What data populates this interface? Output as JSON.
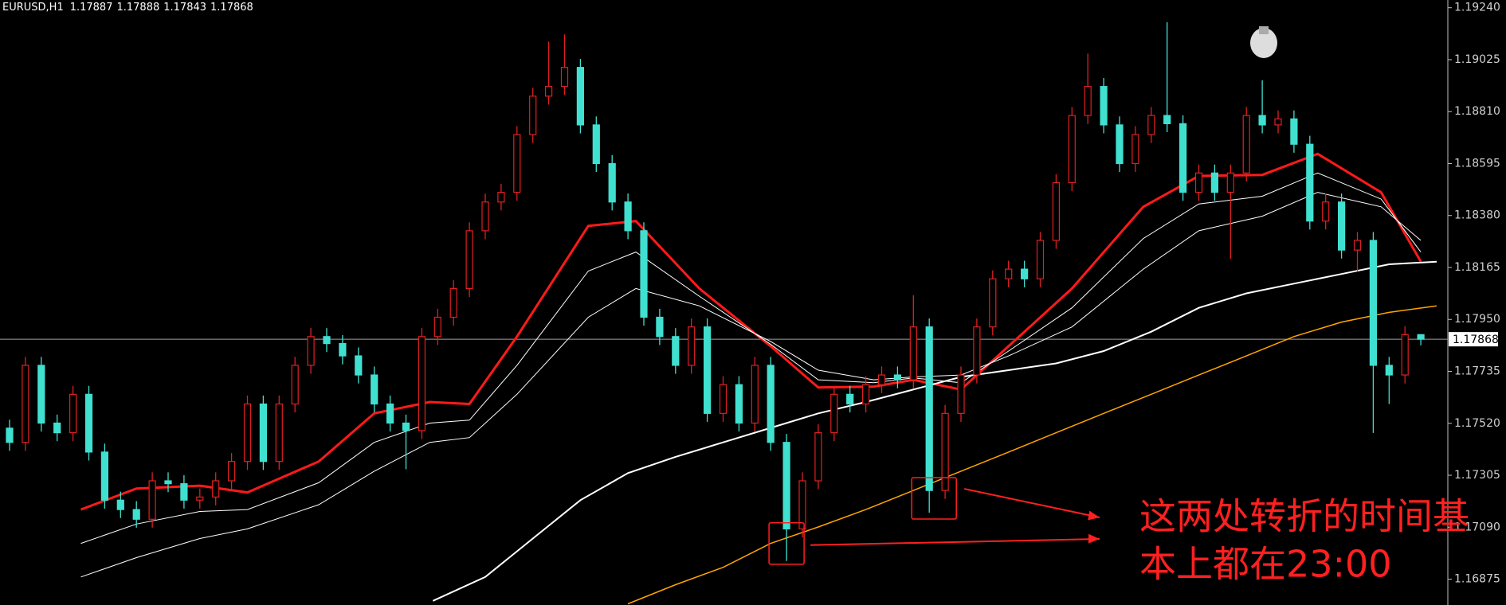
{
  "chart_data": {
    "type": "candlestick",
    "title": "EURUSD,H1",
    "up_color": "#e02020",
    "down_color": "#40e0d0",
    "ylim": [
      1.16768,
      1.19272
    ],
    "yticks": [
      {
        "value": 1.1924,
        "label": "1.19240"
      },
      1.19025,
      {
        "value": 1.1881,
        "label": "1.18810"
      },
      1.18595,
      {
        "value": 1.1838,
        "label": "1.18380"
      },
      1.18165,
      {
        "value": 1.1795,
        "label": "1.17950"
      },
      1.17735,
      {
        "value": 1.1752,
        "label": "1.17520"
      },
      1.17305,
      {
        "value": 1.1709,
        "label": "1.17090"
      },
      1.16875
    ],
    "grid": false,
    "open": [
      1.175,
      1.17441,
      1.1776,
      1.17521,
      1.17481,
      1.1764,
      1.17401,
      1.17202,
      1.17163,
      1.17123,
      1.17282,
      1.1727,
      1.17202,
      1.17215,
      1.17282,
      1.17362,
      1.176,
      1.17362,
      1.176,
      1.1776,
      1.17879,
      1.1785,
      1.17799,
      1.1772,
      1.176,
      1.17521,
      1.1749,
      1.17879,
      1.17959,
      1.18078,
      1.18317,
      1.18436,
      1.18476,
      1.18715,
      1.18874,
      1.18914,
      1.18993,
      1.18755,
      1.18595,
      1.18436,
      1.18317,
      1.17959,
      1.17879,
      1.1776,
      1.17919,
      1.17561,
      1.1768,
      1.17521,
      1.1776,
      1.17441,
      1.17083,
      1.17282,
      1.17481,
      1.1764,
      1.176,
      1.1768,
      1.1772,
      1.177,
      1.17919,
      1.17242,
      1.17561,
      1.1772,
      1.17919,
      1.18118,
      1.18158,
      1.18118,
      1.18277,
      1.18516,
      1.18794,
      1.18914,
      1.18755,
      1.18595,
      1.18715,
      1.18794,
      1.1876,
      1.18476,
      1.18556,
      1.18476,
      1.18556,
      1.18794,
      1.18755,
      1.1878,
      1.18675,
      1.18357,
      1.18436,
      1.18237,
      1.18277,
      1.1776,
      1.1772,
      1.17887
    ],
    "high": [
      1.17535,
      1.17795,
      1.17795,
      1.17556,
      1.17675,
      1.17675,
      1.17436,
      1.17237,
      1.17198,
      1.17317,
      1.17317,
      1.17305,
      1.1725,
      1.17317,
      1.17397,
      1.17635,
      1.17635,
      1.17635,
      1.17795,
      1.17914,
      1.17914,
      1.17885,
      1.17834,
      1.17755,
      1.17635,
      1.17556,
      1.17914,
      1.17994,
      1.18113,
      1.18352,
      1.18471,
      1.18511,
      1.1875,
      1.18909,
      1.191,
      1.1913,
      1.19028,
      1.1879,
      1.1863,
      1.18471,
      1.18352,
      1.17994,
      1.17914,
      1.17954,
      1.17954,
      1.17715,
      1.17715,
      1.17795,
      1.17795,
      1.17476,
      1.17317,
      1.17516,
      1.17675,
      1.17675,
      1.17715,
      1.17755,
      1.17755,
      1.1805,
      1.17954,
      1.17596,
      1.17755,
      1.17954,
      1.18153,
      1.18193,
      1.18193,
      1.18312,
      1.18551,
      1.18829,
      1.1905,
      1.18949,
      1.1879,
      1.1875,
      1.18829,
      1.1918,
      1.18795,
      1.18591,
      1.18591,
      1.18591,
      1.18829,
      1.1894,
      1.18815,
      1.18815,
      1.1871,
      1.18471,
      1.18471,
      1.18312,
      1.18312,
      1.17795,
      1.17922,
      1.17888
    ],
    "low": [
      1.17406,
      1.17406,
      1.17486,
      1.17446,
      1.17446,
      1.17366,
      1.17167,
      1.17128,
      1.17088,
      1.17088,
      1.17235,
      1.17167,
      1.17167,
      1.1718,
      1.17247,
      1.17327,
      1.17327,
      1.17327,
      1.17565,
      1.17725,
      1.17815,
      1.17764,
      1.17685,
      1.17565,
      1.17486,
      1.1733,
      1.17455,
      1.17844,
      1.17924,
      1.18043,
      1.18282,
      1.18401,
      1.18441,
      1.1868,
      1.18839,
      1.18879,
      1.1872,
      1.1856,
      1.18401,
      1.18282,
      1.17924,
      1.17844,
      1.17725,
      1.17725,
      1.17526,
      1.17526,
      1.17486,
      1.17486,
      1.17406,
      1.1695,
      1.17048,
      1.17247,
      1.17446,
      1.17565,
      1.17565,
      1.17645,
      1.17665,
      1.17665,
      1.1715,
      1.17207,
      1.17526,
      1.17685,
      1.17884,
      1.18083,
      1.18083,
      1.18083,
      1.18242,
      1.18481,
      1.18759,
      1.1872,
      1.1856,
      1.1856,
      1.1868,
      1.18725,
      1.18441,
      1.18441,
      1.18441,
      1.182,
      1.18521,
      1.1872,
      1.1872,
      1.1864,
      1.18322,
      1.18322,
      1.18202,
      1.1815,
      1.1748,
      1.176,
      1.17685,
      1.17843
    ],
    "close": [
      1.17441,
      1.1776,
      1.17521,
      1.17481,
      1.1764,
      1.17401,
      1.17202,
      1.17163,
      1.17123,
      1.17282,
      1.1727,
      1.17202,
      1.17215,
      1.17282,
      1.17362,
      1.176,
      1.17362,
      1.176,
      1.1776,
      1.17879,
      1.1785,
      1.17799,
      1.1772,
      1.176,
      1.17521,
      1.1749,
      1.17879,
      1.17959,
      1.18078,
      1.18317,
      1.18436,
      1.18476,
      1.18715,
      1.18874,
      1.18914,
      1.18993,
      1.18755,
      1.18595,
      1.18436,
      1.18317,
      1.17959,
      1.17879,
      1.1776,
      1.17919,
      1.17561,
      1.1768,
      1.17521,
      1.1776,
      1.17441,
      1.17083,
      1.17282,
      1.17481,
      1.1764,
      1.176,
      1.1768,
      1.1772,
      1.177,
      1.17919,
      1.17242,
      1.17561,
      1.1772,
      1.17919,
      1.18118,
      1.18158,
      1.18118,
      1.18277,
      1.18516,
      1.18794,
      1.18914,
      1.18755,
      1.18595,
      1.18715,
      1.18794,
      1.1876,
      1.18476,
      1.18556,
      1.18476,
      1.18556,
      1.18794,
      1.18755,
      1.1878,
      1.18675,
      1.18357,
      1.18436,
      1.18237,
      1.18277,
      1.1776,
      1.1772,
      1.17887,
      1.17868
    ],
    "lines": [
      {
        "color": "#ff1a1a",
        "x": [
          4.5,
          8,
          12,
          15,
          19.5,
          23,
          26.5,
          29,
          32,
          36.5,
          39.5,
          43.5,
          48,
          51,
          54.5,
          57,
          60,
          63,
          67,
          71.5,
          75,
          79,
          82.5,
          86.5,
          89
        ],
        "values": [
          1.17163,
          1.1725,
          1.17262,
          1.17234,
          1.17362,
          1.17561,
          1.17608,
          1.176,
          1.17879,
          1.18337,
          1.18357,
          1.18078,
          1.17839,
          1.17668,
          1.17672,
          1.177,
          1.1766,
          1.17839,
          1.18078,
          1.18416,
          1.18544,
          1.18548,
          1.18635,
          1.18476,
          1.18189
        ]
      },
      {
        "color": "#ffffff",
        "x": [
          4.5,
          8,
          12,
          15,
          19.5,
          23,
          26.5,
          29,
          32,
          36.5,
          39.5,
          43.5,
          48,
          51,
          54.5,
          57,
          60,
          63,
          67,
          71.5,
          75,
          79,
          82.5,
          86.5,
          89
        ],
        "values": [
          1.17023,
          1.17103,
          1.17155,
          1.17163,
          1.17274,
          1.17441,
          1.17521,
          1.17533,
          1.1776,
          1.1815,
          1.18229,
          1.18046,
          1.17847,
          1.177,
          1.17688,
          1.17708,
          1.17688,
          1.17819,
          1.17998,
          1.18285,
          1.18428,
          1.1846,
          1.18556,
          1.18448,
          1.18229
        ]
      },
      {
        "color": "#ffffff",
        "x": [
          4.5,
          8,
          12,
          15,
          19.5,
          23,
          26.5,
          29,
          32,
          36.5,
          39.5,
          43.5,
          48,
          51,
          54.5,
          57,
          60,
          63,
          67,
          71.5,
          75,
          79,
          82.5,
          86.5,
          89
        ],
        "values": [
          1.16884,
          1.16964,
          1.17043,
          1.17083,
          1.17183,
          1.17322,
          1.17441,
          1.17461,
          1.1764,
          1.17959,
          1.18078,
          1.18006,
          1.17859,
          1.1774,
          1.177,
          1.17712,
          1.1772,
          1.17799,
          1.17919,
          1.18158,
          1.18317,
          1.18377,
          1.18476,
          1.18416,
          1.18277
        ]
      },
      {
        "color": "#ffffff",
        "x": [
          26.7,
          30,
          33,
          36,
          39,
          42,
          45,
          48,
          51,
          54,
          57,
          60,
          63,
          66,
          69,
          72,
          75,
          78,
          81,
          84,
          87,
          90
        ],
        "values": [
          1.16785,
          1.16884,
          1.17043,
          1.17202,
          1.17314,
          1.17381,
          1.17441,
          1.17501,
          1.17561,
          1.17608,
          1.1766,
          1.17712,
          1.1774,
          1.17768,
          1.17819,
          1.17899,
          1.17998,
          1.18058,
          1.18098,
          1.18138,
          1.18178,
          1.18189
        ]
      },
      {
        "color": "#ffa500",
        "x": [
          39,
          42,
          45,
          48,
          51,
          54,
          57,
          60,
          63,
          66,
          69,
          72,
          75,
          78,
          81,
          84,
          87,
          90
        ],
        "values": [
          1.16773,
          1.16852,
          1.16924,
          1.17023,
          1.17091,
          1.17163,
          1.17242,
          1.17322,
          1.17401,
          1.17481,
          1.17561,
          1.1764,
          1.1772,
          1.17799,
          1.17879,
          1.17939,
          1.17979,
          1.18006
        ]
      }
    ],
    "annotation": {
      "color": "#ff2020",
      "lines": [
        "这两处转折的时间基",
        "本上都在23:00"
      ]
    }
  }
}
